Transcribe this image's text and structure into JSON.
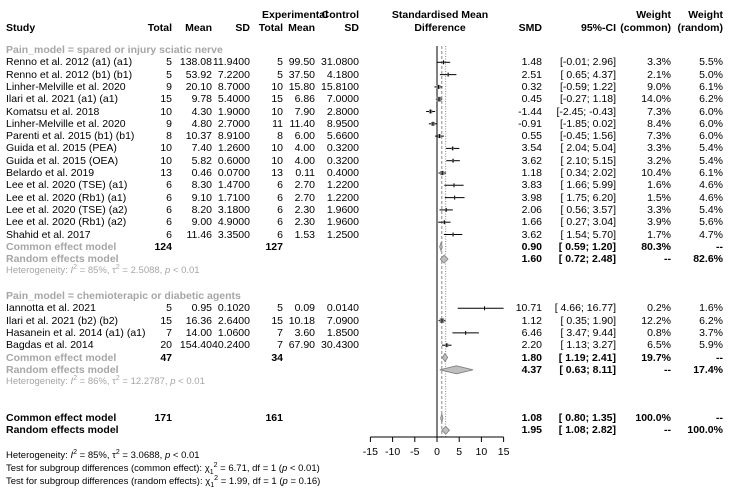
{
  "headers": {
    "study": "Study",
    "experimental": "Experimental",
    "control": "Control",
    "total": "Total",
    "mean": "Mean",
    "sd": "SD",
    "plot_line1": "Standardised Mean",
    "plot_line2": "Difference",
    "smd": "SMD",
    "ci": "95%-CI",
    "weight": "Weight",
    "weight_common": "(common)",
    "weight_random": "(random)"
  },
  "subgroups": [
    {
      "label": "Pain_model = spared or injury sciatic nerve",
      "studies": [
        {
          "study": "Renno et al. 2012 (a1) (a1)",
          "e_total": "5",
          "e_mean": "138.08",
          "e_sd": "11.9400",
          "c_total": "5",
          "c_mean": "99.50",
          "c_sd": "31.0800",
          "smd": "1.48",
          "ci": "[-0.01;  2.96]",
          "w_common": "3.3%",
          "w_random": "5.5%"
        },
        {
          "study": "Renno et al. 2012 (b1) (b1)",
          "e_total": "5",
          "e_mean": "53.92",
          "e_sd": "7.2200",
          "c_total": "5",
          "c_mean": "37.50",
          "c_sd": "4.1800",
          "smd": "2.51",
          "ci": "[ 0.65;  4.37]",
          "w_common": "2.1%",
          "w_random": "5.0%"
        },
        {
          "study": "Linher-Melville et al. 2020",
          "e_total": "9",
          "e_mean": "20.10",
          "e_sd": "8.7000",
          "c_total": "10",
          "c_mean": "15.80",
          "c_sd": "15.8100",
          "smd": "0.32",
          "ci": "[-0.59;  1.22]",
          "w_common": "9.0%",
          "w_random": "6.1%"
        },
        {
          "study": "Ilari et al. 2021 (a1) (a1)",
          "e_total": "15",
          "e_mean": "9.78",
          "e_sd": "5.4000",
          "c_total": "15",
          "c_mean": "6.86",
          "c_sd": "7.0000",
          "smd": "0.45",
          "ci": "[-0.27;  1.18]",
          "w_common": "14.0%",
          "w_random": "6.2%"
        },
        {
          "study": "Komatsu et al. 2018",
          "e_total": "10",
          "e_mean": "4.30",
          "e_sd": "1.9000",
          "c_total": "10",
          "c_mean": "7.90",
          "c_sd": "2.8000",
          "smd": "-1.44",
          "ci": "[-2.45; -0.43]",
          "w_common": "7.3%",
          "w_random": "6.0%"
        },
        {
          "study": "Linher-Melville et al. 2020",
          "e_total": "9",
          "e_mean": "4.80",
          "e_sd": "2.7000",
          "c_total": "11",
          "c_mean": "11.40",
          "c_sd": "8.9500",
          "smd": "-0.91",
          "ci": "[-1.85;  0.02]",
          "w_common": "8.4%",
          "w_random": "6.0%"
        },
        {
          "study": "Parenti et al. 2015 (b1) (b1)",
          "e_total": "8",
          "e_mean": "10.37",
          "e_sd": "8.9100",
          "c_total": "8",
          "c_mean": "6.00",
          "c_sd": "5.6600",
          "smd": "0.55",
          "ci": "[-0.45;  1.56]",
          "w_common": "7.3%",
          "w_random": "6.0%"
        },
        {
          "study": "Guida et al. 2015 (PEA)",
          "e_total": "10",
          "e_mean": "7.40",
          "e_sd": "1.2600",
          "c_total": "10",
          "c_mean": "4.00",
          "c_sd": "0.3200",
          "smd": "3.54",
          "ci": "[ 2.04;  5.04]",
          "w_common": "3.3%",
          "w_random": "5.4%"
        },
        {
          "study": "Guida et al. 2015 (OEA)",
          "e_total": "10",
          "e_mean": "5.82",
          "e_sd": "0.6000",
          "c_total": "10",
          "c_mean": "4.00",
          "c_sd": "0.3200",
          "smd": "3.62",
          "ci": "[ 2.10;  5.15]",
          "w_common": "3.2%",
          "w_random": "5.4%"
        },
        {
          "study": "Belardo et al. 2019",
          "e_total": "13",
          "e_mean": "0.46",
          "e_sd": "0.0700",
          "c_total": "13",
          "c_mean": "0.11",
          "c_sd": "0.4000",
          "smd": "1.18",
          "ci": "[ 0.34;  2.02]",
          "w_common": "10.4%",
          "w_random": "6.1%"
        },
        {
          "study": "Lee et al. 2020 (TSE)  (a1)",
          "e_total": "6",
          "e_mean": "8.30",
          "e_sd": "1.4700",
          "c_total": "6",
          "c_mean": "2.70",
          "c_sd": "1.2200",
          "smd": "3.83",
          "ci": "[ 1.66;  5.99]",
          "w_common": "1.6%",
          "w_random": "4.6%"
        },
        {
          "study": "Lee et al. 2020 (Rb1)  (a1)",
          "e_total": "6",
          "e_mean": "9.10",
          "e_sd": "1.7100",
          "c_total": "6",
          "c_mean": "2.70",
          "c_sd": "1.2200",
          "smd": "3.98",
          "ci": "[ 1.75;  6.20]",
          "w_common": "1.5%",
          "w_random": "4.6%"
        },
        {
          "study": "Lee et al. 2020 (TSE)  (a2)",
          "e_total": "6",
          "e_mean": "8.20",
          "e_sd": "3.1800",
          "c_total": "6",
          "c_mean": "2.30",
          "c_sd": "1.9600",
          "smd": "2.06",
          "ci": "[ 0.56;  3.57]",
          "w_common": "3.3%",
          "w_random": "5.4%"
        },
        {
          "study": "Lee et al. 2020 (Rb1)  (a2)",
          "e_total": "6",
          "e_mean": "9.00",
          "e_sd": "4.9000",
          "c_total": "6",
          "c_mean": "2.30",
          "c_sd": "1.9600",
          "smd": "1.66",
          "ci": "[ 0.27;  3.04]",
          "w_common": "3.9%",
          "w_random": "5.6%"
        },
        {
          "study": "Shahid et al. 2017",
          "e_total": "6",
          "e_mean": "11.46",
          "e_sd": "3.3500",
          "c_total": "6",
          "c_mean": "1.53",
          "c_sd": "1.2500",
          "smd": "3.62",
          "ci": "[ 1.54;  5.70]",
          "w_common": "1.7%",
          "w_random": "4.7%"
        }
      ],
      "common": {
        "label": "Common effect model",
        "e_total": "124",
        "c_total": "127",
        "smd": "0.90",
        "ci": "[ 0.59;  1.20]",
        "w_common": "80.3%",
        "w_random": "--"
      },
      "random": {
        "label": "Random effects model",
        "smd": "1.60",
        "ci": "[ 0.72;  2.48]",
        "w_common": "--",
        "w_random": "82.6%"
      },
      "heterogeneity": {
        "prefix": "Heterogeneity: ",
        "i2": "85%",
        "tau2": "2.5088",
        "p": "< 0.01"
      }
    },
    {
      "label": "Pain_model = chemioterapic or diabetic agents",
      "studies": [
        {
          "study": "Iannotta et al. 2021",
          "e_total": "5",
          "e_mean": "0.95",
          "e_sd": "0.1020",
          "c_total": "5",
          "c_mean": "0.09",
          "c_sd": "0.0140",
          "smd": "10.71",
          "ci": "[ 4.66; 16.77]",
          "w_common": "0.2%",
          "w_random": "1.6%"
        },
        {
          "study": "Ilari et al. 2021 (b2) (b2)",
          "e_total": "15",
          "e_mean": "16.36",
          "e_sd": "2.6400",
          "c_total": "15",
          "c_mean": "10.18",
          "c_sd": "7.0900",
          "smd": "1.12",
          "ci": "[ 0.35;  1.90]",
          "w_common": "12.2%",
          "w_random": "6.2%"
        },
        {
          "study": "Hasanein et al. 2014 (a1) (a1)",
          "e_total": "7",
          "e_mean": "14.00",
          "e_sd": "1.0600",
          "c_total": "7",
          "c_mean": "3.60",
          "c_sd": "1.8500",
          "smd": "6.46",
          "ci": "[ 3.47;  9.44]",
          "w_common": "0.8%",
          "w_random": "3.7%"
        },
        {
          "study": "Bagdas et al. 2014",
          "e_total": "20",
          "e_mean": "154.40",
          "e_sd": "40.2400",
          "c_total": "7",
          "c_mean": "67.90",
          "c_sd": "30.4300",
          "smd": "2.20",
          "ci": "[ 1.13;  3.27]",
          "w_common": "6.5%",
          "w_random": "5.9%"
        }
      ],
      "common": {
        "label": "Common effect model",
        "e_total": "47",
        "c_total": "34",
        "smd": "1.80",
        "ci": "[ 1.19;  2.41]",
        "w_common": "19.7%",
        "w_random": "--"
      },
      "random": {
        "label": "Random effects model",
        "smd": "4.37",
        "ci": "[ 0.63;  8.11]",
        "w_common": "--",
        "w_random": "17.4%"
      },
      "heterogeneity": {
        "prefix": "Heterogeneity: ",
        "i2": "86%",
        "tau2": "12.2787",
        "p": "< 0.01"
      }
    }
  ],
  "overall": {
    "common": {
      "label": "Common effect model",
      "e_total": "171",
      "c_total": "161",
      "smd": "1.08",
      "ci": "[ 0.80;  1.35]",
      "w_common": "100.0%",
      "w_random": "--"
    },
    "random": {
      "label": "Random effects model",
      "smd": "1.95",
      "ci": "[ 1.08;  2.82]",
      "w_common": "--",
      "w_random": "100.0%"
    }
  },
  "footer": {
    "heterogeneity": {
      "prefix": "Heterogeneity: ",
      "i2": "85%",
      "tau2": "3.0688",
      "p": "< 0.01"
    },
    "test_common": {
      "prefix": "Test for subgroup differences (common effect): ",
      "chi": "6.71",
      "df_sub": "1",
      "rest": ", df = 1 (",
      "p": "< 0.01",
      "close": ")"
    },
    "test_random": {
      "prefix": "Test for subgroup differences (random effects): ",
      "chi": "1.99",
      "df_sub": "1",
      "rest": ", df = 1 (",
      "p": "= 0.16",
      "close": ")"
    }
  },
  "axis": {
    "ticks": [
      "-15",
      "-10",
      "-5",
      "0",
      "5",
      "10",
      "15"
    ]
  },
  "colors": {
    "text": "#000000",
    "subgroup_grey": "#a6a6a6",
    "diamond_fill": "#bfbfbf",
    "line": "#000000"
  },
  "chart_data": {
    "type": "forest",
    "title": "",
    "xlabel": "Standardised Mean Difference",
    "xlim": [
      -15,
      15
    ],
    "xticks": [
      -15,
      -10,
      -5,
      0,
      5,
      10,
      15
    ],
    "reference_lines": {
      "null": 0,
      "common_effect": 1.08,
      "random_effects": 1.95
    },
    "series": [
      {
        "name": "Pain_model = spared or injury sciatic nerve",
        "studies": [
          "Renno et al. 2012 (a1) (a1)",
          "Renno et al. 2012 (b1) (b1)",
          "Linher-Melville et al. 2020",
          "Ilari et al. 2021 (a1) (a1)",
          "Komatsu et al. 2018",
          "Linher-Melville et al. 2020",
          "Parenti et al. 2015 (b1) (b1)",
          "Guida et al. 2015 (PEA)",
          "Guida et al. 2015 (OEA)",
          "Belardo et al. 2019",
          "Lee et al. 2020 (TSE) (a1)",
          "Lee et al. 2020 (Rb1) (a1)",
          "Lee et al. 2020 (TSE) (a2)",
          "Lee et al. 2020 (Rb1) (a2)",
          "Shahid et al. 2017"
        ],
        "smd": [
          1.48,
          2.51,
          0.32,
          0.45,
          -1.44,
          -0.91,
          0.55,
          3.54,
          3.62,
          1.18,
          3.83,
          3.98,
          2.06,
          1.66,
          3.62
        ],
        "ci_low": [
          -0.01,
          0.65,
          -0.59,
          -0.27,
          -2.45,
          -1.85,
          -0.45,
          2.04,
          2.1,
          0.34,
          1.66,
          1.75,
          0.56,
          0.27,
          1.54
        ],
        "ci_high": [
          2.96,
          4.37,
          1.22,
          1.18,
          -0.43,
          0.02,
          1.56,
          5.04,
          5.15,
          2.02,
          5.99,
          6.2,
          3.57,
          3.04,
          5.7
        ],
        "weight_common": [
          3.3,
          2.1,
          9.0,
          14.0,
          7.3,
          8.4,
          7.3,
          3.3,
          3.2,
          10.4,
          1.6,
          1.5,
          3.3,
          3.9,
          1.7
        ],
        "weight_random": [
          5.5,
          5.0,
          6.1,
          6.2,
          6.0,
          6.0,
          6.0,
          5.4,
          5.4,
          6.1,
          4.6,
          4.6,
          5.4,
          5.6,
          4.7
        ],
        "common": {
          "smd": 0.9,
          "ci": [
            0.59,
            1.2
          ]
        },
        "random": {
          "smd": 1.6,
          "ci": [
            0.72,
            2.48
          ]
        }
      },
      {
        "name": "Pain_model = chemioterapic or diabetic agents",
        "studies": [
          "Iannotta et al. 2021",
          "Ilari et al. 2021 (b2) (b2)",
          "Hasanein et al. 2014 (a1) (a1)",
          "Bagdas et al. 2014"
        ],
        "smd": [
          10.71,
          1.12,
          6.46,
          2.2
        ],
        "ci_low": [
          4.66,
          0.35,
          3.47,
          1.13
        ],
        "ci_high": [
          16.77,
          1.9,
          9.44,
          3.27
        ],
        "weight_common": [
          0.2,
          12.2,
          0.8,
          6.5
        ],
        "weight_random": [
          1.6,
          6.2,
          3.7,
          5.9
        ],
        "common": {
          "smd": 1.8,
          "ci": [
            1.19,
            2.41
          ]
        },
        "random": {
          "smd": 4.37,
          "ci": [
            0.63,
            8.11
          ]
        }
      }
    ],
    "overall": {
      "common": {
        "smd": 1.08,
        "ci": [
          0.8,
          1.35
        ]
      },
      "random": {
        "smd": 1.95,
        "ci": [
          1.08,
          2.82
        ]
      }
    }
  }
}
